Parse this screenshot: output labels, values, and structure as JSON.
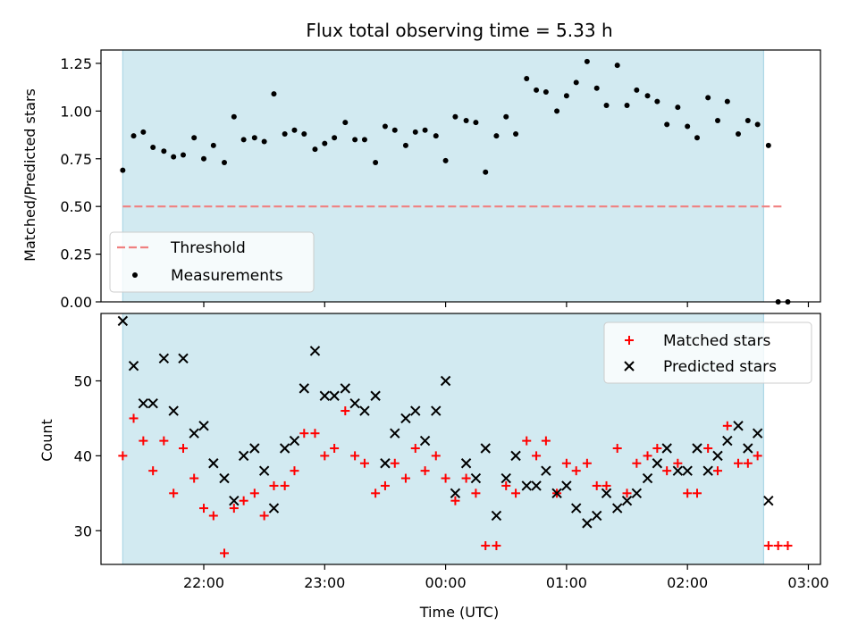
{
  "chart_data": [
    {
      "type": "scatter",
      "title": "Flux total observing time = 5.33 h",
      "xlabel": "",
      "ylabel": "Matched/Predicted stars",
      "x_ticks": [
        "22:00",
        "23:00",
        "00:00",
        "01:00",
        "02:00",
        "03:00"
      ],
      "x_tick_hours": [
        22,
        23,
        24,
        25,
        26,
        27
      ],
      "show_x_tick_labels": false,
      "xlim": [
        21.15,
        27.1
      ],
      "ylim": [
        0,
        1.32
      ],
      "y_ticks": [
        "0.00",
        "0.25",
        "0.50",
        "0.75",
        "1.00",
        "1.25"
      ],
      "y_tick_values": [
        0,
        0.25,
        0.5,
        0.75,
        1.0,
        1.25
      ],
      "shaded_interval": [
        21.33,
        26.63
      ],
      "shaded_color": "#add8e6",
      "threshold": {
        "label": "Threshold",
        "value": 0.5,
        "x_range": [
          21.33,
          26.8
        ],
        "color": "#f08080"
      },
      "legend_placement": "lower-left",
      "series": [
        {
          "name": "Measurements",
          "marker": "dot",
          "color": "#000000",
          "x": [
            21.33,
            21.42,
            21.5,
            21.58,
            21.67,
            21.75,
            21.83,
            21.92,
            22.0,
            22.08,
            22.17,
            22.25,
            22.33,
            22.42,
            22.5,
            22.58,
            22.67,
            22.75,
            22.83,
            22.92,
            23.0,
            23.08,
            23.17,
            23.25,
            23.33,
            23.42,
            23.5,
            23.58,
            23.67,
            23.75,
            23.83,
            23.92,
            24.0,
            24.08,
            24.17,
            24.25,
            24.33,
            24.42,
            24.5,
            24.58,
            24.67,
            24.75,
            24.83,
            24.92,
            25.0,
            25.08,
            25.17,
            25.25,
            25.33,
            25.42,
            25.5,
            25.58,
            25.67,
            25.75,
            25.83,
            25.92,
            26.0,
            26.08,
            26.17,
            26.25,
            26.33,
            26.42,
            26.5,
            26.58,
            26.67,
            26.75,
            26.83
          ],
          "y": [
            0.69,
            0.87,
            0.89,
            0.81,
            0.79,
            0.76,
            0.77,
            0.86,
            0.75,
            0.82,
            0.73,
            0.97,
            0.85,
            0.86,
            0.84,
            1.09,
            0.88,
            0.9,
            0.88,
            0.8,
            0.83,
            0.86,
            0.94,
            0.85,
            0.85,
            0.73,
            0.92,
            0.9,
            0.82,
            0.89,
            0.9,
            0.87,
            0.74,
            0.97,
            0.95,
            0.94,
            0.68,
            0.87,
            0.97,
            0.88,
            1.17,
            1.11,
            1.1,
            1.0,
            1.08,
            1.15,
            1.26,
            1.12,
            1.03,
            1.24,
            1.03,
            1.11,
            1.08,
            1.05,
            0.93,
            1.02,
            0.92,
            0.86,
            1.07,
            0.95,
            1.05,
            0.88,
            0.95,
            0.93,
            0.82,
            0.0,
            0.0
          ]
        }
      ]
    },
    {
      "type": "scatter",
      "title": "",
      "xlabel": "Time (UTC)",
      "ylabel": "Count",
      "x_ticks": [
        "22:00",
        "23:00",
        "00:00",
        "01:00",
        "02:00",
        "03:00"
      ],
      "x_tick_hours": [
        22,
        23,
        24,
        25,
        26,
        27
      ],
      "show_x_tick_labels": true,
      "xlim": [
        21.15,
        27.1
      ],
      "ylim": [
        25.5,
        59
      ],
      "y_ticks": [
        "30",
        "40",
        "50"
      ],
      "y_tick_values": [
        30,
        40,
        50
      ],
      "shaded_interval": [
        21.33,
        26.63
      ],
      "shaded_color": "#add8e6",
      "legend_placement": "upper-right",
      "series": [
        {
          "name": "Matched stars",
          "marker": "plus",
          "color": "#ff0000",
          "x": [
            21.33,
            21.42,
            21.5,
            21.58,
            21.67,
            21.75,
            21.83,
            21.92,
            22.0,
            22.08,
            22.17,
            22.25,
            22.33,
            22.42,
            22.5,
            22.58,
            22.67,
            22.75,
            22.83,
            22.92,
            23.0,
            23.08,
            23.17,
            23.25,
            23.33,
            23.42,
            23.5,
            23.58,
            23.67,
            23.75,
            23.83,
            23.92,
            24.0,
            24.08,
            24.17,
            24.25,
            24.33,
            24.42,
            24.5,
            24.58,
            24.67,
            24.75,
            24.83,
            24.92,
            25.0,
            25.08,
            25.17,
            25.25,
            25.33,
            25.42,
            25.5,
            25.58,
            25.67,
            25.75,
            25.83,
            25.92,
            26.0,
            26.08,
            26.17,
            26.25,
            26.33,
            26.42,
            26.5,
            26.58,
            26.67,
            26.75,
            26.83
          ],
          "y": [
            40,
            45,
            42,
            38,
            42,
            35,
            41,
            37,
            33,
            32,
            27,
            33,
            34,
            35,
            32,
            36,
            36,
            38,
            43,
            43,
            40,
            41,
            46,
            40,
            39,
            35,
            36,
            39,
            37,
            41,
            38,
            40,
            37,
            34,
            37,
            35,
            28,
            28,
            36,
            35,
            42,
            40,
            42,
            35,
            39,
            38,
            39,
            36,
            36,
            41,
            35,
            39,
            40,
            41,
            38,
            39,
            35,
            35,
            41,
            38,
            44,
            39,
            39,
            40,
            28,
            28,
            28
          ]
        },
        {
          "name": "Predicted stars",
          "marker": "x",
          "color": "#000000",
          "x": [
            21.33,
            21.42,
            21.5,
            21.58,
            21.67,
            21.75,
            21.83,
            21.92,
            22.0,
            22.08,
            22.17,
            22.25,
            22.33,
            22.42,
            22.5,
            22.58,
            22.67,
            22.75,
            22.83,
            22.92,
            23.0,
            23.08,
            23.17,
            23.25,
            23.33,
            23.42,
            23.5,
            23.58,
            23.67,
            23.75,
            23.83,
            23.92,
            24.0,
            24.08,
            24.17,
            24.25,
            24.33,
            24.42,
            24.5,
            24.58,
            24.67,
            24.75,
            24.83,
            24.92,
            25.0,
            25.08,
            25.17,
            25.25,
            25.33,
            25.42,
            25.5,
            25.58,
            25.67,
            25.75,
            25.83,
            25.92,
            26.0,
            26.08,
            26.17,
            26.25,
            26.33,
            26.42,
            26.5,
            26.58,
            26.67
          ],
          "y": [
            58,
            52,
            47,
            47,
            53,
            46,
            53,
            43,
            44,
            39,
            37,
            34,
            40,
            41,
            38,
            33,
            41,
            42,
            49,
            54,
            48,
            48,
            49,
            47,
            46,
            48,
            39,
            43,
            45,
            46,
            42,
            46,
            50,
            35,
            39,
            37,
            41,
            32,
            37,
            40,
            36,
            36,
            38,
            35,
            36,
            33,
            31,
            32,
            35,
            33,
            34,
            35,
            37,
            39,
            41,
            38,
            38,
            41,
            38,
            40,
            42,
            44,
            41,
            43,
            34
          ]
        }
      ]
    }
  ]
}
